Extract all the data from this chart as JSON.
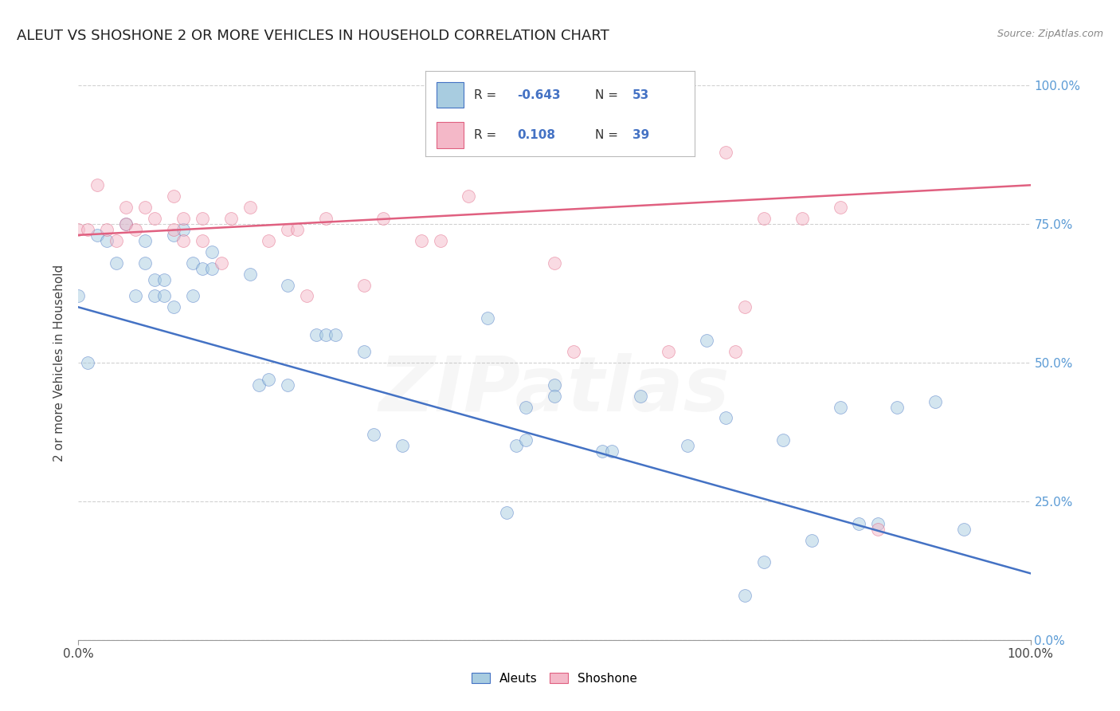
{
  "title": "ALEUT VS SHOSHONE 2 OR MORE VEHICLES IN HOUSEHOLD CORRELATION CHART",
  "source": "Source: ZipAtlas.com",
  "ylabel": "2 or more Vehicles in Household",
  "legend_label_1": "Aleuts",
  "legend_label_2": "Shoshone",
  "color_aleuts": "#a8cce0",
  "color_shoshone": "#f4b8c8",
  "color_line_aleuts": "#4472c4",
  "color_line_shoshone": "#e06080",
  "background_color": "#ffffff",
  "grid_color": "#cccccc",
  "xlim": [
    0.0,
    1.0
  ],
  "ylim": [
    0.0,
    1.0
  ],
  "ytick_values": [
    0.0,
    0.25,
    0.5,
    0.75,
    1.0
  ],
  "ytick_labels": [
    "0.0%",
    "25.0%",
    "50.0%",
    "75.0%",
    "100.0%"
  ],
  "aleuts_x": [
    0.0,
    0.01,
    0.02,
    0.03,
    0.04,
    0.05,
    0.06,
    0.07,
    0.07,
    0.08,
    0.08,
    0.09,
    0.09,
    0.1,
    0.1,
    0.11,
    0.12,
    0.12,
    0.13,
    0.14,
    0.14,
    0.18,
    0.19,
    0.2,
    0.22,
    0.22,
    0.25,
    0.26,
    0.27,
    0.3,
    0.31,
    0.34,
    0.43,
    0.45,
    0.46,
    0.47,
    0.47,
    0.5,
    0.5,
    0.55,
    0.56,
    0.59,
    0.64,
    0.66,
    0.68,
    0.7,
    0.72,
    0.74,
    0.77,
    0.8,
    0.82,
    0.84,
    0.86,
    0.9,
    0.93
  ],
  "aleuts_y": [
    0.62,
    0.5,
    0.73,
    0.72,
    0.68,
    0.75,
    0.62,
    0.68,
    0.72,
    0.62,
    0.65,
    0.62,
    0.65,
    0.6,
    0.73,
    0.74,
    0.68,
    0.62,
    0.67,
    0.7,
    0.67,
    0.66,
    0.46,
    0.47,
    0.64,
    0.46,
    0.55,
    0.55,
    0.55,
    0.52,
    0.37,
    0.35,
    0.58,
    0.23,
    0.35,
    0.42,
    0.36,
    0.46,
    0.44,
    0.34,
    0.34,
    0.44,
    0.35,
    0.54,
    0.4,
    0.08,
    0.14,
    0.36,
    0.18,
    0.42,
    0.21,
    0.21,
    0.42,
    0.43,
    0.2
  ],
  "shoshone_x": [
    0.0,
    0.01,
    0.02,
    0.03,
    0.04,
    0.05,
    0.05,
    0.06,
    0.07,
    0.08,
    0.1,
    0.1,
    0.11,
    0.11,
    0.13,
    0.13,
    0.15,
    0.16,
    0.18,
    0.2,
    0.22,
    0.23,
    0.24,
    0.26,
    0.3,
    0.32,
    0.36,
    0.38,
    0.41,
    0.5,
    0.52,
    0.62,
    0.68,
    0.69,
    0.7,
    0.72,
    0.76,
    0.8,
    0.84
  ],
  "shoshone_y": [
    0.74,
    0.74,
    0.82,
    0.74,
    0.72,
    0.78,
    0.75,
    0.74,
    0.78,
    0.76,
    0.74,
    0.8,
    0.72,
    0.76,
    0.72,
    0.76,
    0.68,
    0.76,
    0.78,
    0.72,
    0.74,
    0.74,
    0.62,
    0.76,
    0.64,
    0.76,
    0.72,
    0.72,
    0.8,
    0.68,
    0.52,
    0.52,
    0.88,
    0.52,
    0.6,
    0.76,
    0.76,
    0.78,
    0.2
  ],
  "aleuts_line_y_start": 0.6,
  "aleuts_line_y_end": 0.12,
  "shoshone_line_y_start": 0.73,
  "shoshone_line_y_end": 0.82,
  "marker_size": 130,
  "marker_alpha": 0.5,
  "title_fontsize": 13,
  "axis_label_fontsize": 11,
  "tick_fontsize": 11,
  "watermark_text": "ZIPatlas",
  "watermark_alpha": 0.1,
  "watermark_fontsize": 70,
  "right_tick_color": "#5b9bd5"
}
